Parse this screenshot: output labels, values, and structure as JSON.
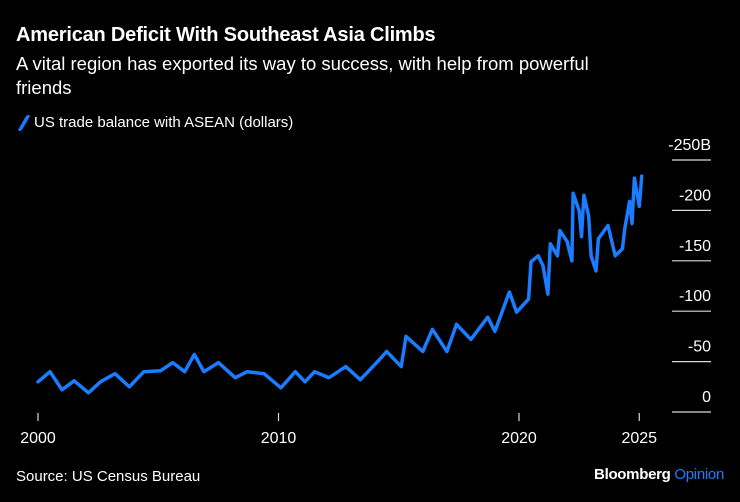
{
  "chart_data": {
    "type": "line",
    "title": "American Deficit With Southeast Asia Climbs",
    "subtitle": "A vital region has exported its way to success, with help from powerful friends",
    "legend": "top-left",
    "series": [
      {
        "name": "US trade balance with ASEAN (dollars)",
        "color": "#1a7cff",
        "x": [
          2000.0,
          2000.5,
          2001.0,
          2001.5,
          2002.1,
          2002.6,
          2003.2,
          2003.8,
          2004.4,
          2005.1,
          2005.6,
          2006.1,
          2006.5,
          2006.9,
          2007.5,
          2008.2,
          2008.7,
          2009.4,
          2010.1,
          2010.7,
          2011.1,
          2011.5,
          2012.1,
          2012.8,
          2013.4,
          2013.8,
          2014.2,
          2014.5,
          2015.1,
          2015.3,
          2016.0,
          2016.4,
          2017.0,
          2017.4,
          2018.0,
          2018.7,
          2019.0,
          2019.6,
          2019.9,
          2020.4,
          2020.5,
          2020.8,
          2021.0,
          2021.2,
          2021.3,
          2021.6,
          2021.7,
          2022.0,
          2022.2,
          2022.25,
          2022.5,
          2022.6,
          2022.7,
          2022.9,
          2023.0,
          2023.2,
          2023.3,
          2023.7,
          2024.0,
          2024.3,
          2024.4,
          2024.6,
          2024.7,
          2024.8,
          2025.0,
          2025.1
        ],
        "y": [
          -30,
          -40,
          -22,
          -31,
          -19,
          -30,
          -38,
          -25,
          -40,
          -41,
          -49,
          -40,
          -57,
          -40,
          -49,
          -34,
          -40,
          -38,
          -24,
          -40,
          -30,
          -40,
          -34,
          -45,
          -32,
          -42,
          -52,
          -60,
          -45,
          -75,
          -60,
          -82,
          -60,
          -87,
          -72,
          -94,
          -80,
          -119,
          -99,
          -112,
          -149,
          -155,
          -145,
          -117,
          -167,
          -155,
          -180,
          -169,
          -150,
          -217,
          -200,
          -174,
          -215,
          -194,
          -155,
          -140,
          -172,
          -185,
          -155,
          -162,
          -182,
          -209,
          -187,
          -232,
          -204,
          -234
        ]
      }
    ],
    "x_ticks": [
      {
        "value": 2000,
        "label": "2000"
      },
      {
        "value": 2010,
        "label": "2010"
      },
      {
        "value": 2020,
        "label": "2020"
      },
      {
        "value": 2025,
        "label": "2025"
      }
    ],
    "y_ticks": [
      {
        "value": 0,
        "label": "0"
      },
      {
        "value": -50,
        "label": "-50"
      },
      {
        "value": -100,
        "label": "-100"
      },
      {
        "value": -150,
        "label": "-150"
      },
      {
        "value": -200,
        "label": "-200"
      },
      {
        "value": -250,
        "label": "-250B"
      }
    ],
    "ylim": [
      0,
      -250
    ],
    "y_axis_inverted": true,
    "y_axis_position": "right",
    "grid": "horizontal stubs at right",
    "source": "Source: US Census Bureau"
  },
  "branding": {
    "name": "Bloomberg",
    "suffix": "Opinion",
    "accent": "#1a7cff"
  }
}
